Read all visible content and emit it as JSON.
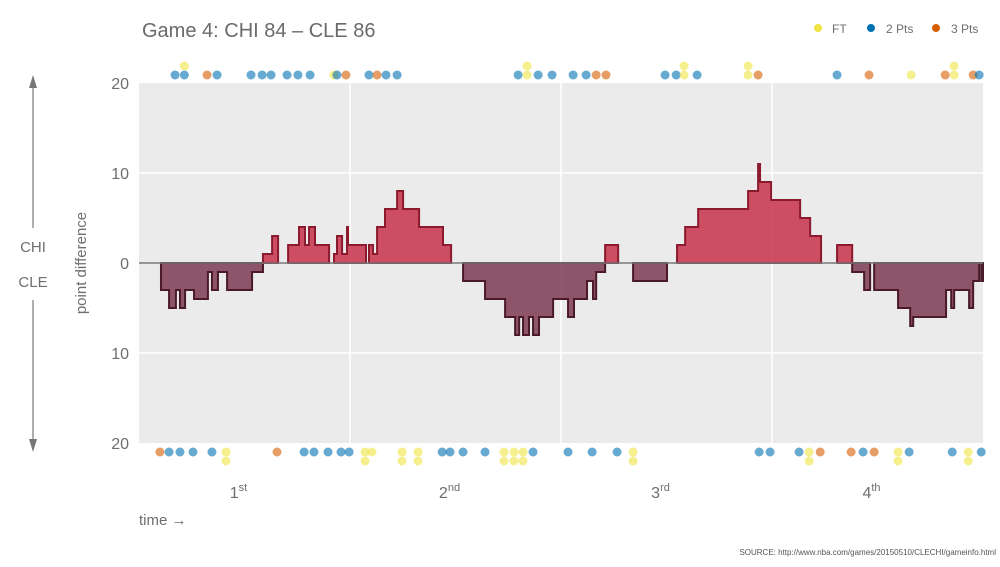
{
  "chart_data": {
    "type": "area",
    "title": "Game 4: CHI 84  –  CLE 86",
    "xlabel": "time →",
    "ylabel": "point difference",
    "side_labels": {
      "top": "CHI",
      "bottom": "CLE"
    },
    "source": "SOURCE: http://www.nba.com/games/20150510/CLECHI/gameinfo.html",
    "xlim": [
      0,
      48
    ],
    "ylim": [
      -20,
      20
    ],
    "y_ticks": [
      {
        "value": 20,
        "label": "20"
      },
      {
        "value": 10,
        "label": "10"
      },
      {
        "value": 0,
        "label": "0"
      },
      {
        "value": -10,
        "label": "10"
      },
      {
        "value": -20,
        "label": "20"
      }
    ],
    "quarters": [
      {
        "num": "1",
        "suffix": "st",
        "center": 6
      },
      {
        "num": "2",
        "suffix": "nd",
        "center": 18
      },
      {
        "num": "3",
        "suffix": "rd",
        "center": 30
      },
      {
        "num": "4",
        "suffix": "th",
        "center": 42
      }
    ],
    "legend": [
      {
        "key": "ft",
        "label": "FT"
      },
      {
        "key": "2",
        "label": "2 Pts"
      },
      {
        "key": "3",
        "label": "3 Pts"
      }
    ],
    "legend_placement": "top-right",
    "colors": {
      "ft": "#f0e442",
      "2": "#0072b2",
      "3": "#d55e00",
      "chi_fill": "#c8324b",
      "chi_stroke": "#8b1a2e",
      "cle_fill": "#7e3a52",
      "cle_stroke": "#4a1a2a",
      "panel": "#ebebeb"
    },
    "steps": [
      [
        0,
        0
      ],
      [
        1.25,
        -3
      ],
      [
        1.71,
        -5
      ],
      [
        2.1,
        -3
      ],
      [
        2.33,
        -5
      ],
      [
        2.62,
        -3
      ],
      [
        3.13,
        -4
      ],
      [
        3.92,
        -1
      ],
      [
        4.15,
        -3
      ],
      [
        4.49,
        -1
      ],
      [
        5.01,
        -3
      ],
      [
        6.43,
        -1
      ],
      [
        7.05,
        1
      ],
      [
        7.57,
        3
      ],
      [
        7.91,
        0
      ],
      [
        8.48,
        2
      ],
      [
        9.1,
        4
      ],
      [
        9.44,
        2
      ],
      [
        9.67,
        4
      ],
      [
        10.01,
        2
      ],
      [
        10.81,
        0
      ],
      [
        11.09,
        1
      ],
      [
        11.26,
        3
      ],
      [
        11.55,
        1
      ],
      [
        11.83,
        4
      ],
      [
        11.89,
        2
      ],
      [
        12.91,
        0
      ],
      [
        13.08,
        2
      ],
      [
        13.31,
        1
      ],
      [
        13.54,
        4
      ],
      [
        13.99,
        6
      ],
      [
        14.68,
        8
      ],
      [
        15.02,
        6
      ],
      [
        15.93,
        4
      ],
      [
        17.29,
        2
      ],
      [
        17.75,
        0
      ],
      [
        18.43,
        -2
      ],
      [
        19.68,
        -4
      ],
      [
        20.82,
        -6
      ],
      [
        21.39,
        -8
      ],
      [
        21.62,
        -6
      ],
      [
        21.84,
        -8
      ],
      [
        22.18,
        -6
      ],
      [
        22.41,
        -8
      ],
      [
        22.75,
        -6
      ],
      [
        23.55,
        -4
      ],
      [
        24.4,
        -6
      ],
      [
        24.74,
        -4
      ],
      [
        25.48,
        -2
      ],
      [
        25.82,
        -4
      ],
      [
        26.0,
        -1
      ],
      [
        26.51,
        2
      ],
      [
        27.25,
        0
      ],
      [
        28.1,
        -2
      ],
      [
        30.03,
        0
      ],
      [
        30.6,
        2
      ],
      [
        31.06,
        4
      ],
      [
        31.8,
        6
      ],
      [
        34.64,
        8
      ],
      [
        35.21,
        11
      ],
      [
        35.32,
        9
      ],
      [
        35.95,
        7
      ],
      [
        37.6,
        5
      ],
      [
        38.17,
        3
      ],
      [
        38.79,
        0
      ],
      [
        39.7,
        2
      ],
      [
        40.56,
        -1
      ],
      [
        41.24,
        -3
      ],
      [
        41.58,
        0
      ],
      [
        41.81,
        -3
      ],
      [
        43.17,
        -5
      ],
      [
        43.86,
        -7
      ],
      [
        44.03,
        -6
      ],
      [
        45.9,
        -3
      ],
      [
        46.19,
        -5
      ],
      [
        46.36,
        -3
      ],
      [
        47.21,
        -5
      ],
      [
        47.44,
        -2
      ],
      [
        47.78,
        0
      ],
      [
        47.9,
        -2
      ]
    ],
    "chi_scores": [
      [
        2.05,
        "2"
      ],
      [
        2.58,
        "2",
        "ft"
      ],
      [
        3.87,
        "3"
      ],
      [
        4.44,
        "2"
      ],
      [
        6.37,
        "2"
      ],
      [
        7.0,
        "2"
      ],
      [
        7.51,
        "2"
      ],
      [
        8.42,
        "2"
      ],
      [
        9.04,
        "2"
      ],
      [
        9.73,
        "2"
      ],
      [
        11.09,
        "ft"
      ],
      [
        11.26,
        "2"
      ],
      [
        11.77,
        "3"
      ],
      [
        13.08,
        "2"
      ],
      [
        13.54,
        "3"
      ],
      [
        14.05,
        "2"
      ],
      [
        14.68,
        "2"
      ],
      [
        21.56,
        "2"
      ],
      [
        22.07,
        "ft",
        "ft"
      ],
      [
        22.7,
        "2"
      ],
      [
        23.49,
        "2"
      ],
      [
        24.69,
        "2"
      ],
      [
        25.43,
        "2"
      ],
      [
        26.0,
        "3"
      ],
      [
        26.56,
        "3"
      ],
      [
        29.92,
        "2"
      ],
      [
        30.55,
        "2"
      ],
      [
        31.0,
        "ft",
        "ft"
      ],
      [
        31.74,
        "2"
      ],
      [
        34.64,
        "ft",
        "ft"
      ],
      [
        35.21,
        "3"
      ],
      [
        39.7,
        "2"
      ],
      [
        41.52,
        "3"
      ],
      [
        43.91,
        "ft"
      ],
      [
        45.85,
        "3"
      ],
      [
        46.36,
        "ft",
        "ft"
      ],
      [
        47.44,
        "3"
      ],
      [
        47.78,
        "2"
      ]
    ],
    "cle_scores": [
      [
        1.19,
        "3"
      ],
      [
        1.71,
        "2"
      ],
      [
        2.33,
        "2"
      ],
      [
        3.07,
        "2"
      ],
      [
        4.15,
        "2"
      ],
      [
        4.95,
        "ft",
        "ft"
      ],
      [
        7.85,
        "3"
      ],
      [
        9.39,
        "2"
      ],
      [
        9.95,
        "2"
      ],
      [
        10.75,
        "2"
      ],
      [
        11.49,
        "2"
      ],
      [
        11.95,
        "2"
      ],
      [
        12.86,
        "ft",
        "ft"
      ],
      [
        13.25,
        "ft"
      ],
      [
        14.96,
        "ft",
        "ft"
      ],
      [
        15.87,
        "ft",
        "ft"
      ],
      [
        17.24,
        "2"
      ],
      [
        17.69,
        "2"
      ],
      [
        18.43,
        "2"
      ],
      [
        19.68,
        "2"
      ],
      [
        20.76,
        "ft",
        "ft"
      ],
      [
        21.33,
        "ft",
        "ft"
      ],
      [
        21.84,
        "ft",
        "ft"
      ],
      [
        22.41,
        "2"
      ],
      [
        24.4,
        "2"
      ],
      [
        25.77,
        "2"
      ],
      [
        27.19,
        "2"
      ],
      [
        28.1,
        "ft",
        "ft"
      ],
      [
        35.27,
        "2"
      ],
      [
        35.89,
        "2"
      ],
      [
        37.54,
        "2"
      ],
      [
        38.11,
        "ft",
        "ft"
      ],
      [
        38.74,
        "3"
      ],
      [
        40.5,
        "3"
      ],
      [
        41.18,
        "2"
      ],
      [
        41.81,
        "3"
      ],
      [
        43.17,
        "ft",
        "ft"
      ],
      [
        43.8,
        "2"
      ],
      [
        46.25,
        "2"
      ],
      [
        47.16,
        "ft",
        "ft"
      ],
      [
        47.9,
        "2"
      ]
    ]
  }
}
